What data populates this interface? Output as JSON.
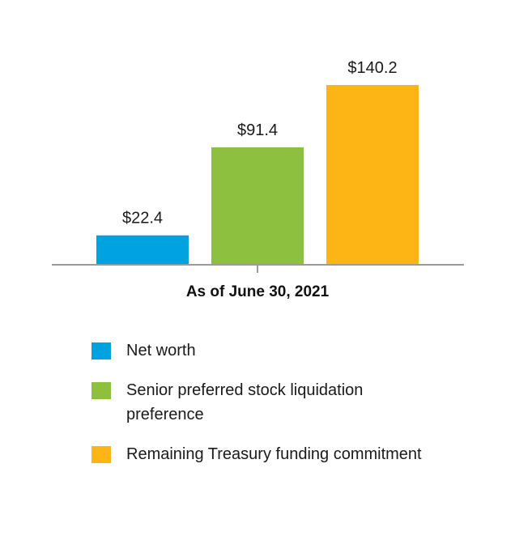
{
  "chart_data": {
    "type": "bar",
    "categories": [
      "As of June 30, 2021"
    ],
    "series": [
      {
        "name": "Net worth",
        "value": 22.4,
        "label": "$22.4",
        "color": "#00A3E0"
      },
      {
        "name": "Senior preferred stock liquidation preference",
        "value": 91.4,
        "label": "$91.4",
        "color": "#8DC03F"
      },
      {
        "name": "Remaining Treasury funding commitment",
        "value": 140.2,
        "label": "$140.2",
        "color": "#FDB515"
      }
    ],
    "ylim": [
      0,
      140.2
    ],
    "grid": false,
    "legend_position": "bottom-left"
  }
}
